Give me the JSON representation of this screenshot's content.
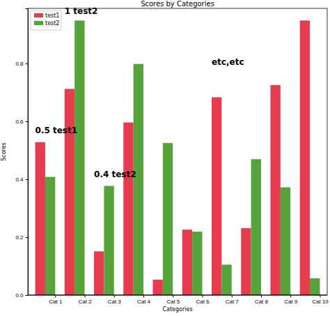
{
  "chart_data": {
    "type": "bar",
    "title": "Scores by Categories",
    "x_label": "Categories",
    "y_label": "Scores",
    "categories": [
      "Cat 1",
      "Cat 2",
      "Cat 3",
      "Cat 4",
      "Cat 5",
      "Cat 6",
      "Cat 7",
      "Cat 8",
      "Cat 9",
      "Cat 10"
    ],
    "series": [
      {
        "name": "test1",
        "color": "#e63c4d",
        "values": [
          0.528,
          0.712,
          0.151,
          0.596,
          0.053,
          0.226,
          0.683,
          0.231,
          0.725,
          0.948
        ]
      },
      {
        "name": "test2",
        "color": "#56a33b",
        "values": [
          0.408,
          0.948,
          0.377,
          0.798,
          0.525,
          0.219,
          0.105,
          0.469,
          0.372,
          0.058
        ]
      }
    ],
    "ylim": [
      0,
      0.99
    ],
    "yticks": [
      {
        "value": 0,
        "label": "0.0"
      },
      0.2,
      0.4,
      0.6,
      0.8
    ],
    "grid": false,
    "legend": "upper left",
    "annotations": [
      {
        "text": "0.5 test1",
        "x": "Cat 1",
        "y": 0.559
      },
      {
        "text": "1 test2",
        "x": "Cat 2",
        "y": 0.97
      },
      {
        "text": "0.4 test2",
        "x": "Cat 3",
        "y": 0.406
      },
      {
        "text": "etc,etc",
        "x": "Cat 7",
        "y": 0.795
      }
    ]
  }
}
